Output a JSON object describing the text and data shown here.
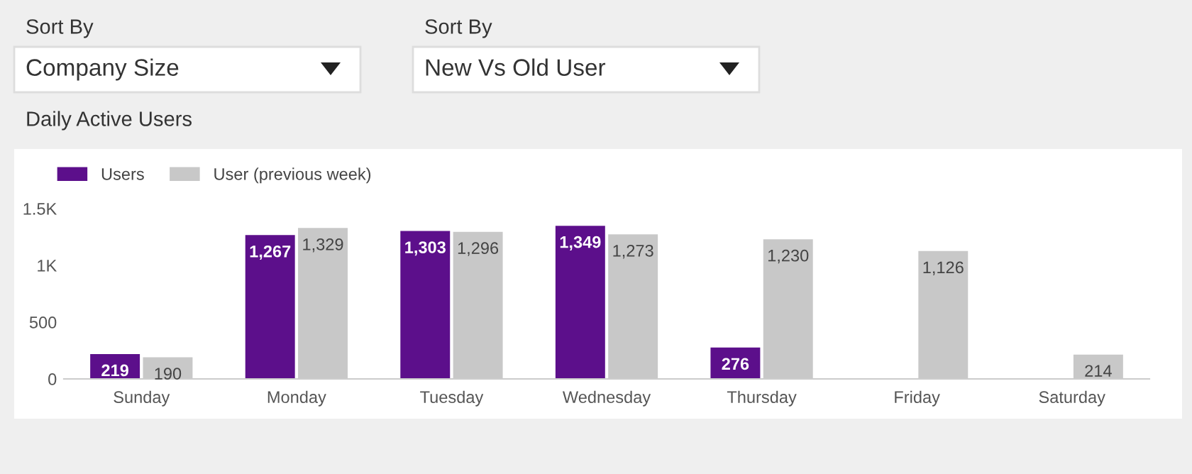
{
  "chart_data": {
    "type": "bar",
    "title": "Daily Active Users",
    "annotations": [
      "Sort By",
      "Company Size",
      "Sort By",
      "New Vs Old User"
    ],
    "categories": [
      "Sunday",
      "Monday",
      "Tuesday",
      "Wednesday",
      "Thursday",
      "Friday",
      "Saturday"
    ],
    "series": [
      {
        "name": "Users",
        "color": "#5c0f8b",
        "values": [
          219,
          1267,
          1303,
          1349,
          276,
          null,
          null
        ],
        "value_labels": [
          "219",
          "1,267",
          "1,303",
          "1,349",
          "276",
          null,
          null
        ]
      },
      {
        "name": "User (previous week)",
        "color": "#c8c8c8",
        "values": [
          190,
          1329,
          1296,
          1273,
          1230,
          1126,
          214
        ],
        "value_labels": [
          "190",
          "1,329",
          "1,296",
          "1,273",
          "1,230",
          "1,126",
          "214"
        ]
      }
    ],
    "ylim": [
      0,
      1500
    ],
    "yticks": [
      0,
      500,
      {
        "value": 1000,
        "label": "1K"
      },
      {
        "value": 1500,
        "label": "1.5K"
      }
    ],
    "legend": "top left",
    "grid": false
  }
}
